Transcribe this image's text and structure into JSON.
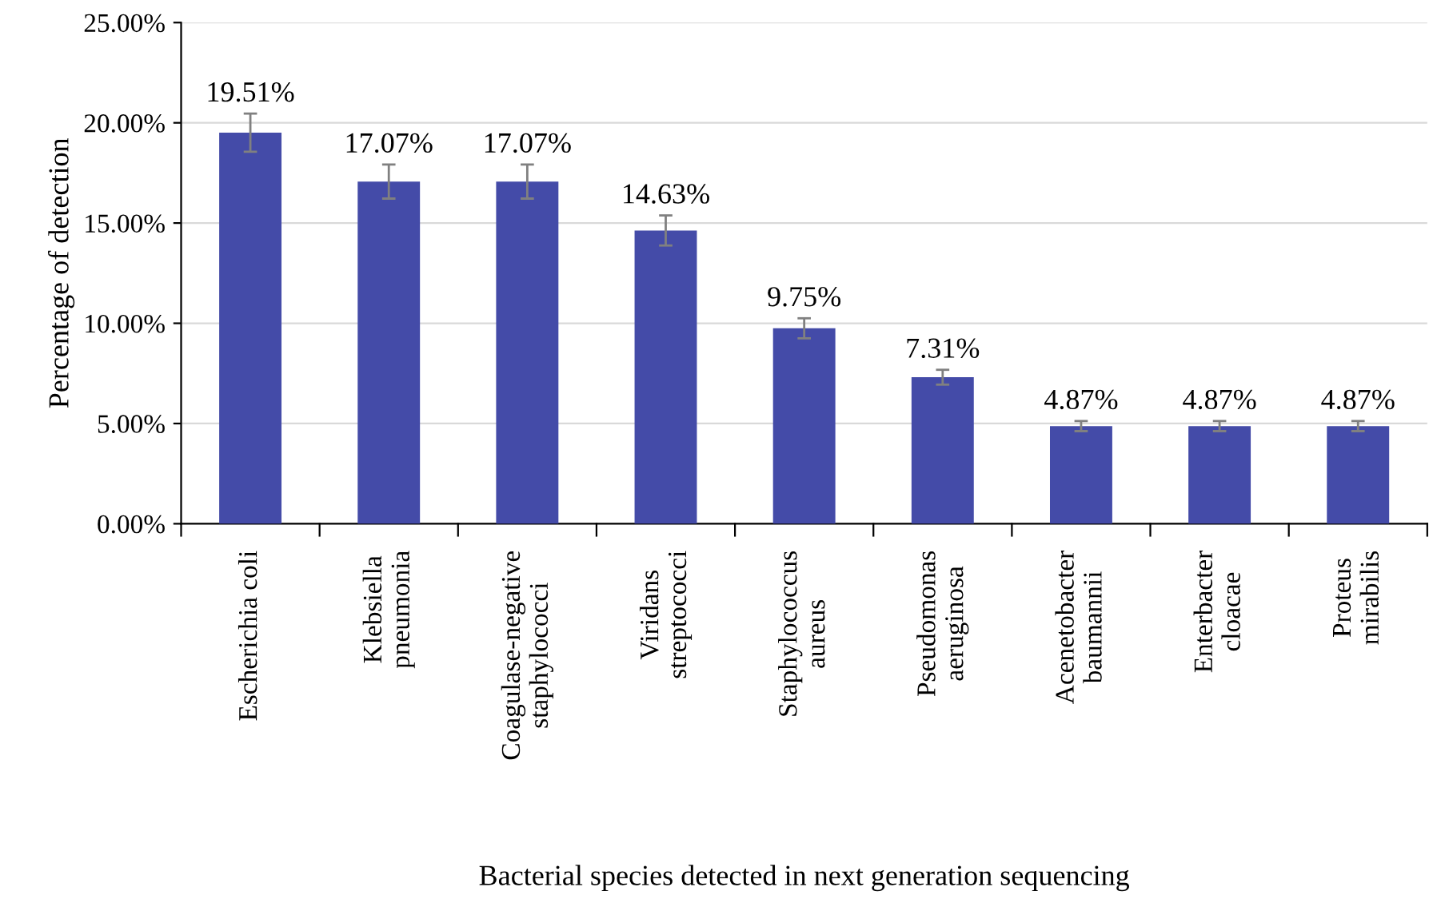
{
  "chart_data": {
    "type": "bar",
    "xlabel": "Bacterial species detected in next generation sequencing",
    "ylabel": "Percentage of detection",
    "categories": [
      "Escherichia coli",
      "Klebsiella\npneumonia",
      "Coagulase-negative\nstaphylococci",
      "Viridans\nstreptococci",
      "Staphylococcus\naureus",
      "Pseudomonas\naeruginosa",
      "Acenetobacter\nbaumannii",
      "Enterbacter\ncloacae",
      "Proteus\nmirabilis"
    ],
    "values": [
      19.51,
      17.07,
      17.07,
      14.63,
      9.75,
      7.31,
      4.87,
      4.87,
      4.87
    ],
    "errors": [
      0.95,
      0.85,
      0.85,
      0.75,
      0.5,
      0.37,
      0.25,
      0.25,
      0.25
    ],
    "value_labels": [
      "19.51%",
      "17.07%",
      "17.07%",
      "14.63%",
      "9.75%",
      "7.31%",
      "4.87%",
      "4.87%",
      "4.87%"
    ],
    "color": "#444ba8",
    "ylim": [
      0,
      25
    ],
    "yticks": [
      {
        "value": 0,
        "label": "0.00%"
      },
      {
        "value": 5,
        "label": "5.00%"
      },
      {
        "value": 10,
        "label": "10.00%"
      },
      {
        "value": 15,
        "label": "15.00%"
      },
      {
        "value": 20,
        "label": "20.00%"
      },
      {
        "value": 25,
        "label": "25.00%"
      }
    ],
    "grid": "y"
  }
}
